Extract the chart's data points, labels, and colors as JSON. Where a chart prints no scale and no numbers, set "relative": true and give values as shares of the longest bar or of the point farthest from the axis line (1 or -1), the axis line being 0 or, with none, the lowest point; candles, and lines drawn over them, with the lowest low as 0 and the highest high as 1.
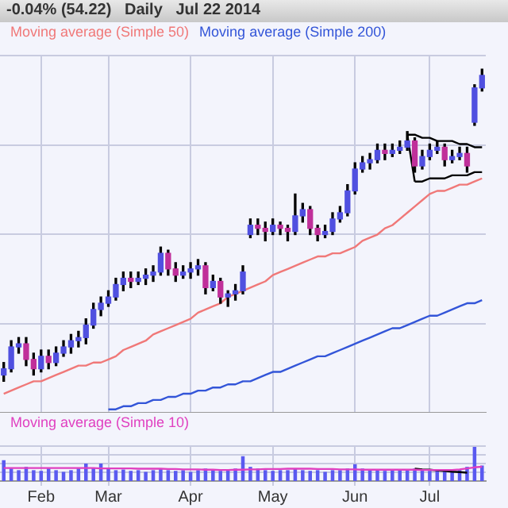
{
  "chart_data": [
    {
      "type": "candlestick",
      "title": "-0.04% (54.22)   Daily   Jul 22 2014",
      "relative": true,
      "grid": true,
      "tick_labels": false,
      "legend": "top left",
      "marker": "none",
      "categories": [
        null,
        null,
        null,
        null,
        null,
        null,
        null,
        null,
        null,
        null,
        null,
        null,
        null,
        null,
        null,
        null,
        null,
        null,
        null,
        null,
        null,
        null,
        null,
        null,
        null,
        null,
        null,
        null,
        null,
        null,
        null,
        null,
        null,
        null,
        null,
        null,
        null,
        null,
        null,
        null,
        null,
        null,
        null,
        null,
        null,
        null,
        null,
        null,
        null,
        null,
        null,
        null,
        null,
        null,
        null,
        null,
        null,
        null,
        null,
        null,
        null,
        null,
        null,
        null,
        null
      ],
      "ohlc": [
        [
          0.02,
          0.06,
          0.0,
          0.04
        ],
        [
          0.04,
          0.13,
          0.03,
          0.11
        ],
        [
          0.11,
          0.14,
          0.09,
          0.12
        ],
        [
          0.12,
          0.14,
          0.05,
          0.07
        ],
        [
          0.07,
          0.09,
          0.02,
          0.04
        ],
        [
          0.04,
          0.1,
          0.03,
          0.08
        ],
        [
          0.08,
          0.1,
          0.04,
          0.06
        ],
        [
          0.06,
          0.11,
          0.05,
          0.09
        ],
        [
          0.09,
          0.13,
          0.08,
          0.11
        ],
        [
          0.11,
          0.15,
          0.09,
          0.13
        ],
        [
          0.13,
          0.16,
          0.11,
          0.14
        ],
        [
          0.14,
          0.2,
          0.12,
          0.18
        ],
        [
          0.18,
          0.25,
          0.17,
          0.23
        ],
        [
          0.23,
          0.27,
          0.21,
          0.25
        ],
        [
          0.25,
          0.29,
          0.24,
          0.27
        ],
        [
          0.27,
          0.33,
          0.26,
          0.31
        ],
        [
          0.31,
          0.35,
          0.29,
          0.33
        ],
        [
          0.33,
          0.35,
          0.3,
          0.32
        ],
        [
          0.32,
          0.35,
          0.31,
          0.33
        ],
        [
          0.33,
          0.36,
          0.31,
          0.34
        ],
        [
          0.34,
          0.37,
          0.32,
          0.35
        ],
        [
          0.35,
          0.43,
          0.34,
          0.41
        ],
        [
          0.41,
          0.42,
          0.34,
          0.36
        ],
        [
          0.36,
          0.38,
          0.32,
          0.34
        ],
        [
          0.34,
          0.37,
          0.33,
          0.35
        ],
        [
          0.35,
          0.38,
          0.33,
          0.36
        ],
        [
          0.36,
          0.39,
          0.34,
          0.37
        ],
        [
          0.37,
          0.38,
          0.28,
          0.3
        ],
        [
          0.3,
          0.34,
          0.29,
          0.32
        ],
        [
          0.32,
          0.33,
          0.25,
          0.27
        ],
        [
          0.27,
          0.29,
          0.24,
          0.28
        ],
        [
          0.28,
          0.31,
          0.26,
          0.29
        ],
        [
          0.29,
          0.37,
          0.28,
          0.35
        ],
        [
          0.47,
          0.52,
          0.46,
          0.5
        ],
        [
          0.5,
          0.52,
          0.47,
          0.49
        ],
        [
          0.49,
          0.51,
          0.45,
          0.48
        ],
        [
          0.48,
          0.52,
          0.47,
          0.5
        ],
        [
          0.5,
          0.51,
          0.47,
          0.49
        ],
        [
          0.49,
          0.5,
          0.45,
          0.48
        ],
        [
          0.48,
          0.6,
          0.47,
          0.53
        ],
        [
          0.53,
          0.57,
          0.51,
          0.55
        ],
        [
          0.55,
          0.56,
          0.47,
          0.49
        ],
        [
          0.49,
          0.5,
          0.45,
          0.47
        ],
        [
          0.47,
          0.5,
          0.46,
          0.48
        ],
        [
          0.48,
          0.54,
          0.47,
          0.52
        ],
        [
          0.52,
          0.56,
          0.51,
          0.54
        ],
        [
          0.54,
          0.63,
          0.53,
          0.61
        ],
        [
          0.61,
          0.7,
          0.6,
          0.68
        ],
        [
          0.68,
          0.72,
          0.67,
          0.7
        ],
        [
          0.7,
          0.73,
          0.68,
          0.71
        ],
        [
          0.71,
          0.76,
          0.7,
          0.74
        ],
        [
          0.74,
          0.76,
          0.71,
          0.73
        ],
        [
          0.73,
          0.76,
          0.72,
          0.74
        ],
        [
          0.74,
          0.77,
          0.73,
          0.75
        ],
        [
          0.75,
          0.8,
          0.74,
          0.77
        ],
        [
          0.77,
          0.78,
          0.67,
          0.69
        ],
        [
          0.69,
          0.74,
          0.68,
          0.72
        ],
        [
          0.72,
          0.76,
          0.71,
          0.74
        ],
        [
          0.74,
          0.77,
          0.73,
          0.75
        ],
        [
          0.75,
          0.76,
          0.69,
          0.71
        ],
        [
          0.71,
          0.74,
          0.7,
          0.72
        ],
        [
          0.72,
          0.75,
          0.71,
          0.73
        ],
        [
          0.73,
          0.75,
          0.67,
          0.69
        ],
        [
          0.83,
          0.95,
          0.82,
          0.94
        ],
        [
          0.94,
          1.0,
          0.93,
          0.98
        ]
      ],
      "series": [
        {
          "name": "Moving average (Simple 50)",
          "type": "line",
          "color": "#f07878",
          "values": [
            -0.04,
            -0.03,
            -0.02,
            -0.01,
            0.0,
            0.0,
            0.01,
            0.02,
            0.03,
            0.04,
            0.05,
            0.05,
            0.06,
            0.06,
            0.07,
            0.08,
            0.1,
            0.11,
            0.12,
            0.13,
            0.15,
            0.16,
            0.17,
            0.18,
            0.19,
            0.2,
            0.22,
            0.23,
            0.24,
            0.25,
            0.27,
            0.28,
            0.29,
            0.3,
            0.31,
            0.32,
            0.34,
            0.35,
            0.36,
            0.37,
            0.38,
            0.39,
            0.4,
            0.4,
            0.41,
            0.41,
            0.42,
            0.43,
            0.45,
            0.46,
            0.47,
            0.49,
            0.5,
            0.52,
            0.54,
            0.56,
            0.58,
            0.6,
            0.61,
            0.61,
            0.62,
            0.63,
            0.63,
            0.64,
            0.65
          ]
        },
        {
          "name": "Moving average (Simple 200)",
          "type": "line",
          "color": "#3355d8",
          "values": [
            null,
            null,
            null,
            null,
            null,
            null,
            null,
            null,
            null,
            null,
            null,
            null,
            null,
            null,
            -0.09,
            -0.09,
            -0.08,
            -0.08,
            -0.07,
            -0.07,
            -0.06,
            -0.06,
            -0.05,
            -0.05,
            -0.04,
            -0.04,
            -0.03,
            -0.03,
            -0.02,
            -0.02,
            -0.01,
            -0.01,
            0.0,
            0.0,
            0.01,
            0.02,
            0.03,
            0.03,
            0.04,
            0.05,
            0.06,
            0.07,
            0.08,
            0.08,
            0.09,
            0.1,
            0.11,
            0.12,
            0.13,
            0.14,
            0.15,
            0.16,
            0.17,
            0.17,
            0.18,
            0.19,
            0.2,
            0.21,
            0.21,
            0.22,
            0.23,
            0.24,
            0.25,
            0.25,
            0.26
          ]
        },
        {
          "type": "line",
          "color": "#000000",
          "values": [
            null,
            null,
            null,
            null,
            null,
            null,
            null,
            null,
            null,
            null,
            null,
            null,
            null,
            null,
            null,
            null,
            null,
            null,
            null,
            null,
            null,
            null,
            null,
            null,
            null,
            null,
            null,
            null,
            null,
            null,
            null,
            null,
            null,
            null,
            null,
            null,
            null,
            null,
            null,
            null,
            null,
            null,
            null,
            null,
            null,
            null,
            null,
            null,
            null,
            null,
            null,
            null,
            null,
            null,
            0.79,
            0.79,
            0.78,
            0.78,
            0.77,
            0.77,
            0.77,
            0.76,
            0.76,
            0.75,
            0.75
          ]
        },
        {
          "type": "line",
          "color": "#000000",
          "values": [
            null,
            null,
            null,
            null,
            null,
            null,
            null,
            null,
            null,
            null,
            null,
            null,
            null,
            null,
            null,
            null,
            null,
            null,
            null,
            null,
            null,
            null,
            null,
            null,
            null,
            null,
            null,
            null,
            null,
            null,
            null,
            null,
            null,
            null,
            null,
            null,
            null,
            null,
            null,
            null,
            null,
            null,
            null,
            null,
            null,
            null,
            null,
            null,
            null,
            null,
            null,
            null,
            null,
            null,
            null,
            0.64,
            0.64,
            0.65,
            0.65,
            0.65,
            0.66,
            0.66,
            0.66,
            0.67,
            0.67
          ]
        },
        {
          "type": "line",
          "color": "#000000",
          "values": [
            null,
            null,
            null,
            null,
            null,
            null,
            null,
            null,
            null,
            null,
            null,
            null,
            null,
            null,
            null,
            null,
            null,
            null,
            null,
            null,
            null,
            null,
            null,
            null,
            null,
            null,
            null,
            null,
            null,
            null,
            null,
            null,
            null,
            null,
            null,
            null,
            null,
            null,
            null,
            null,
            null,
            null,
            null,
            null,
            null,
            null,
            null,
            null,
            null,
            null,
            null,
            null,
            null,
            null,
            0.79,
            0.64,
            null,
            null,
            null,
            null,
            null,
            null,
            null,
            null,
            null
          ]
        }
      ]
    },
    {
      "type": "bar",
      "relative": true,
      "grid": true,
      "tick_labels": "x",
      "legend": "top left",
      "marker": "none",
      "categories": [
        null,
        null,
        null,
        null,
        null,
        "Feb",
        null,
        null,
        null,
        null,
        null,
        null,
        null,
        null,
        "Mar",
        null,
        null,
        null,
        null,
        null,
        null,
        null,
        null,
        null,
        null,
        "Apr",
        null,
        null,
        null,
        null,
        null,
        null,
        null,
        null,
        null,
        null,
        "May",
        null,
        null,
        null,
        null,
        null,
        null,
        null,
        null,
        null,
        null,
        "Jun",
        null,
        null,
        null,
        null,
        null,
        null,
        null,
        null,
        null,
        "Jul",
        null,
        null,
        null,
        null,
        null,
        null,
        null
      ],
      "series": [
        {
          "type": "bar",
          "color": "#5a5af0",
          "values": [
            0.6,
            0.35,
            0.3,
            0.4,
            0.3,
            0.28,
            0.35,
            0.3,
            0.25,
            0.3,
            0.35,
            0.5,
            0.38,
            0.5,
            0.35,
            0.3,
            0.32,
            0.28,
            0.3,
            0.25,
            0.3,
            0.35,
            0.3,
            0.28,
            0.3,
            0.25,
            0.3,
            0.35,
            0.3,
            0.28,
            0.3,
            0.35,
            0.72,
            0.4,
            0.35,
            0.3,
            0.28,
            0.3,
            0.3,
            0.35,
            0.3,
            0.28,
            0.3,
            0.25,
            0.3,
            0.3,
            0.35,
            0.48,
            0.35,
            0.3,
            0.3,
            0.28,
            0.3,
            0.3,
            0.32,
            0.35,
            0.3,
            0.28,
            0.3,
            0.3,
            0.28,
            0.3,
            0.4,
            1,
            0.44
          ]
        },
        {
          "name": "Moving average (Simple 10)",
          "type": "line",
          "color": "#e040c0",
          "values": [
            0.38,
            0.38,
            0.38,
            0.38,
            0.38,
            0.38,
            0.38,
            0.38,
            0.38,
            0.38,
            0.38,
            0.38,
            0.38,
            0.37,
            0.37,
            0.37,
            0.37,
            0.37,
            0.36,
            0.36,
            0.36,
            0.36,
            0.35,
            0.35,
            0.34,
            0.34,
            0.34,
            0.33,
            0.33,
            0.32,
            0.32,
            0.33,
            0.33,
            0.34,
            0.34,
            0.35,
            0.35,
            0.35,
            0.36,
            0.36,
            0.36,
            0.36,
            0.35,
            0.35,
            0.35,
            0.34,
            0.34,
            0.34,
            0.33,
            0.33,
            0.33,
            0.33,
            0.33,
            0.33,
            0.33,
            0.33,
            0.32,
            0.32,
            0.32,
            0.32,
            0.32,
            0.34,
            0.37,
            0.4,
            0.42
          ]
        },
        {
          "type": "line",
          "color": "#000000",
          "values": [
            null,
            null,
            null,
            null,
            null,
            null,
            null,
            null,
            null,
            null,
            null,
            null,
            null,
            null,
            null,
            null,
            null,
            null,
            null,
            null,
            null,
            null,
            null,
            null,
            null,
            null,
            null,
            null,
            null,
            null,
            null,
            null,
            null,
            null,
            null,
            null,
            null,
            null,
            null,
            null,
            null,
            null,
            null,
            null,
            null,
            null,
            null,
            null,
            null,
            null,
            null,
            null,
            null,
            null,
            null,
            0.36,
            0.34,
            0.33,
            0.31,
            0.29,
            0.27,
            0.26,
            0.24,
            null,
            null
          ]
        }
      ]
    }
  ]
}
